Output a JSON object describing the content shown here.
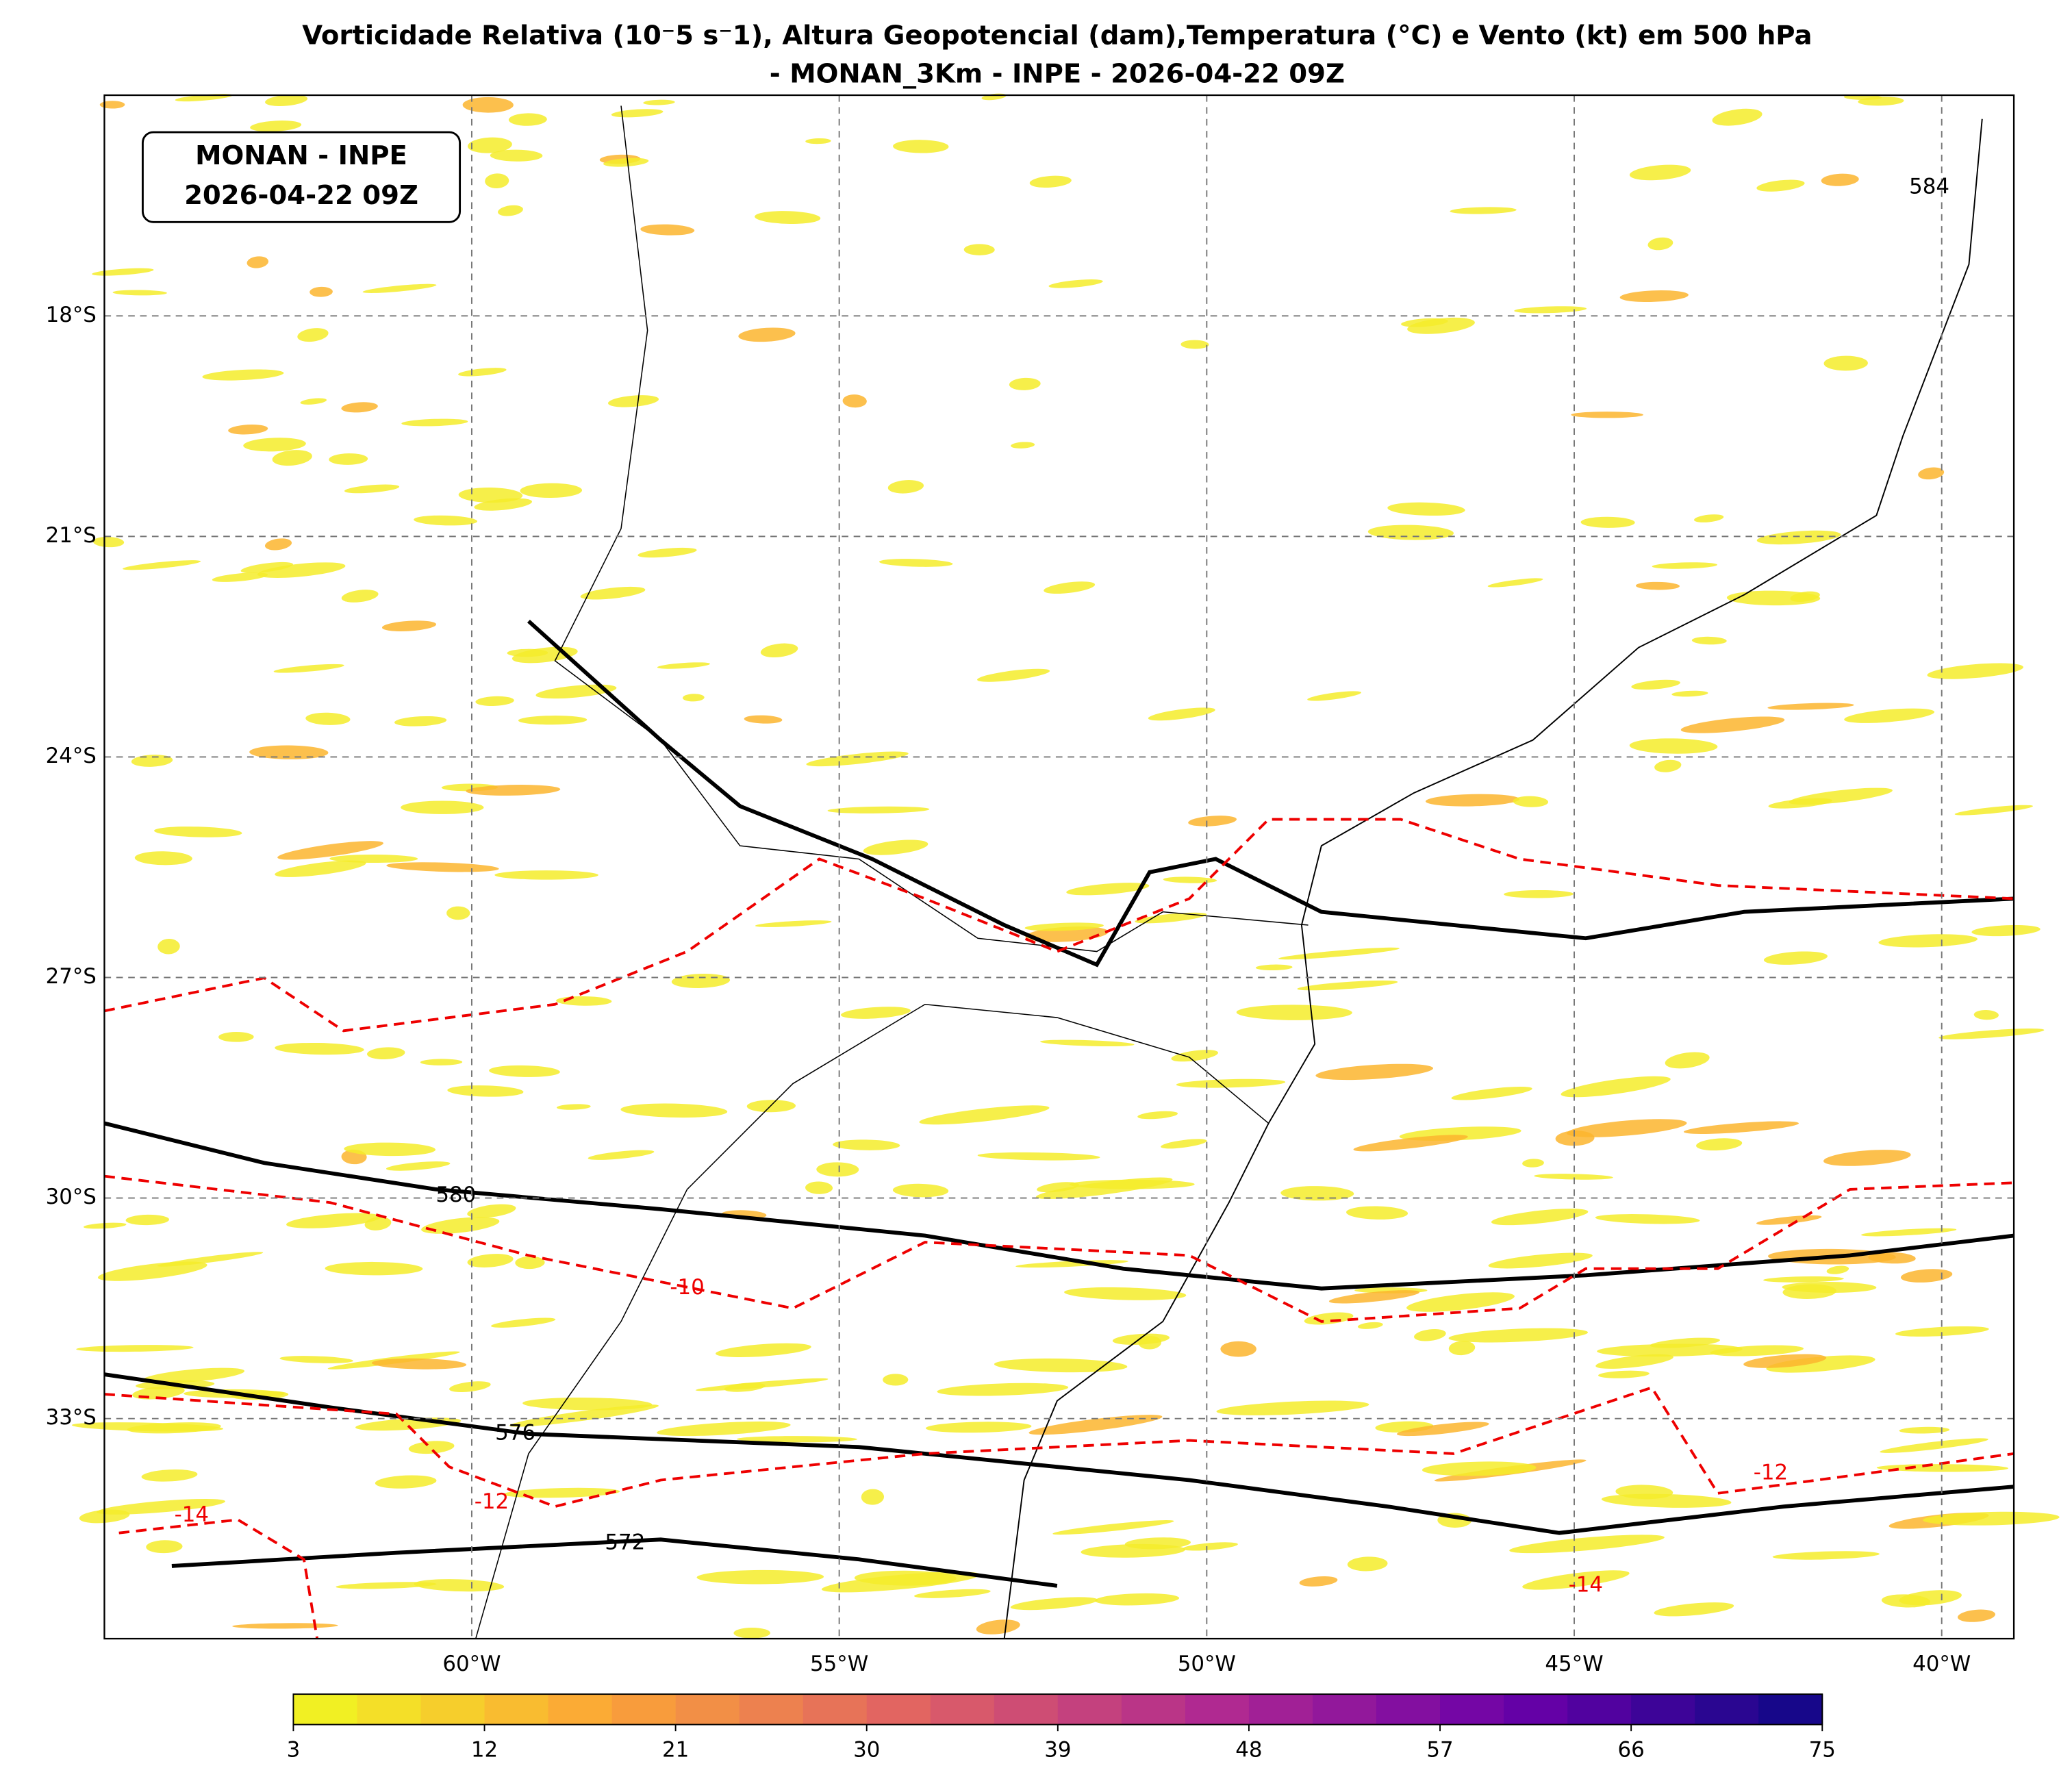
{
  "map_data": {
    "title": "Vorticidade Relativa (10⁻5 s⁻1), Altura Geopotencial (dam),Temperatura (°C) e Vento (kt) em 500 hPa",
    "subtitle": "- MONAN_3Km - INPE - 2026-04-22 09Z",
    "stamp": [
      "MONAN - INPE",
      "2026-04-22 09Z"
    ],
    "lat_ticks": [
      {
        "value": -18,
        "label": "18°S"
      },
      {
        "value": -21,
        "label": "21°S"
      },
      {
        "value": -24,
        "label": "24°S"
      },
      {
        "value": -27,
        "label": "27°S"
      },
      {
        "value": -30,
        "label": "30°S"
      },
      {
        "value": -33,
        "label": "33°S"
      }
    ],
    "lon_ticks": [
      {
        "value": -60,
        "label": "60°W"
      },
      {
        "value": -55,
        "label": "55°W"
      },
      {
        "value": -50,
        "label": "50°W"
      },
      {
        "value": -45,
        "label": "45°W"
      },
      {
        "value": -40,
        "label": "40°W"
      }
    ],
    "colorbar": {
      "ticks": [
        3,
        12,
        21,
        30,
        39,
        48,
        57,
        66,
        75
      ],
      "colors": [
        "#f0f921",
        "#fca636",
        "#e16462",
        "#b12a90",
        "#6a00a8",
        "#0d0887"
      ]
    },
    "height_labels": [
      584,
      580,
      576,
      572
    ],
    "temperature_labels": [
      -10,
      -12,
      -14,
      -12,
      -14
    ]
  }
}
